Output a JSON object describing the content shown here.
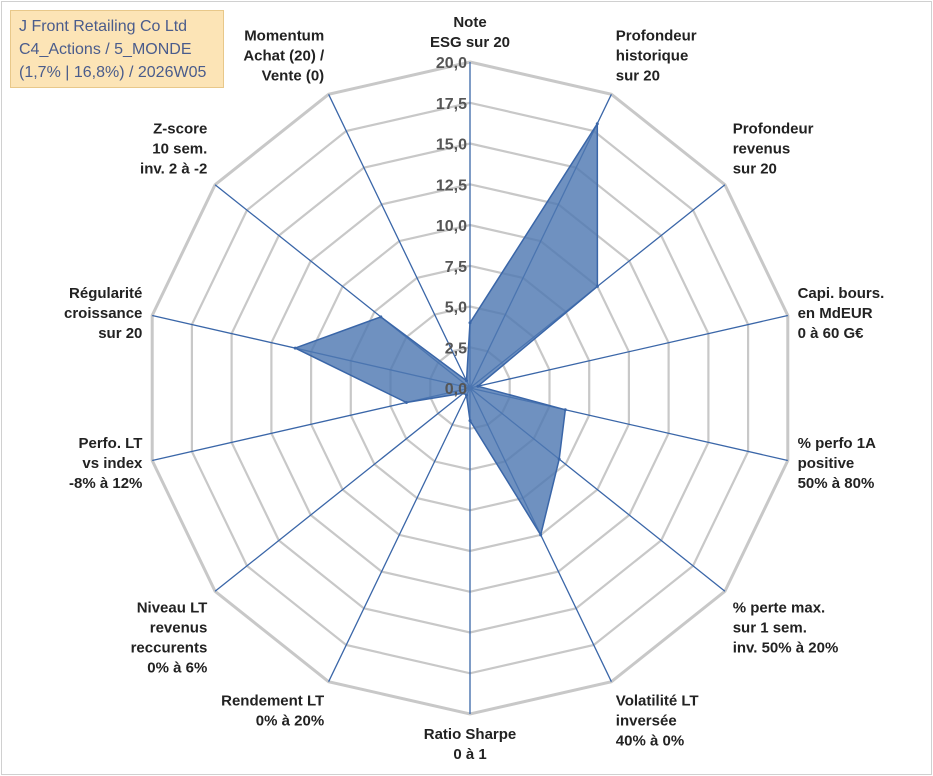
{
  "header": {
    "line1": "J Front Retailing Co Ltd",
    "line2": "C4_Actions / 5_MONDE",
    "line3": "(1,7% | 16,8%) / 2026W05"
  },
  "chart_data": {
    "type": "radar",
    "rmin": 0,
    "rmax": 20,
    "step": 2.5,
    "ticks": [
      "0,0",
      "2,5",
      "5,0",
      "7,5",
      "10,0",
      "12,5",
      "15,0",
      "17,5",
      "20,0"
    ],
    "axes": [
      [
        "Note",
        "ESG sur 20"
      ],
      [
        "Profondeur",
        "historique",
        "sur 20"
      ],
      [
        "Profondeur",
        "revenus",
        "sur 20"
      ],
      [
        "Capi. bours.",
        "en MdEUR",
        "0 à 60 G€"
      ],
      [
        "% perfo 1A",
        "positive",
        "50% à 80%"
      ],
      [
        "% perte max.",
        "sur 1 sem.",
        "inv. 50% à 20%"
      ],
      [
        "Volatilité LT",
        "inversée",
        "40% à 0%"
      ],
      [
        "Ratio Sharpe",
        "0 à 1"
      ],
      [
        "Rendement LT",
        "0% à 20%"
      ],
      [
        "Niveau LT",
        "revenus",
        "reccurents",
        "0% à 6%"
      ],
      [
        "Perfo. LT",
        "vs index",
        "-8% à 12%"
      ],
      [
        "Régularité",
        "croissance",
        "sur 20"
      ],
      [
        "Z-score",
        "10 sem.",
        "inv. 2 à -2"
      ],
      [
        "Momentum",
        "Achat (20) /",
        "Vente (0)"
      ]
    ],
    "series": [
      {
        "name": "J Front Retailing Co Ltd",
        "values": [
          4.0,
          18.0,
          10.0,
          0.5,
          6.0,
          7.0,
          10.0,
          2.0,
          0.5,
          0.5,
          4.0,
          11.0,
          7.0,
          0.5
        ]
      }
    ],
    "colors": {
      "fill": "#4f79b2",
      "stroke": "#3a66a8",
      "spoke": "#3a66a8",
      "grid": "#c8c8c8"
    }
  }
}
